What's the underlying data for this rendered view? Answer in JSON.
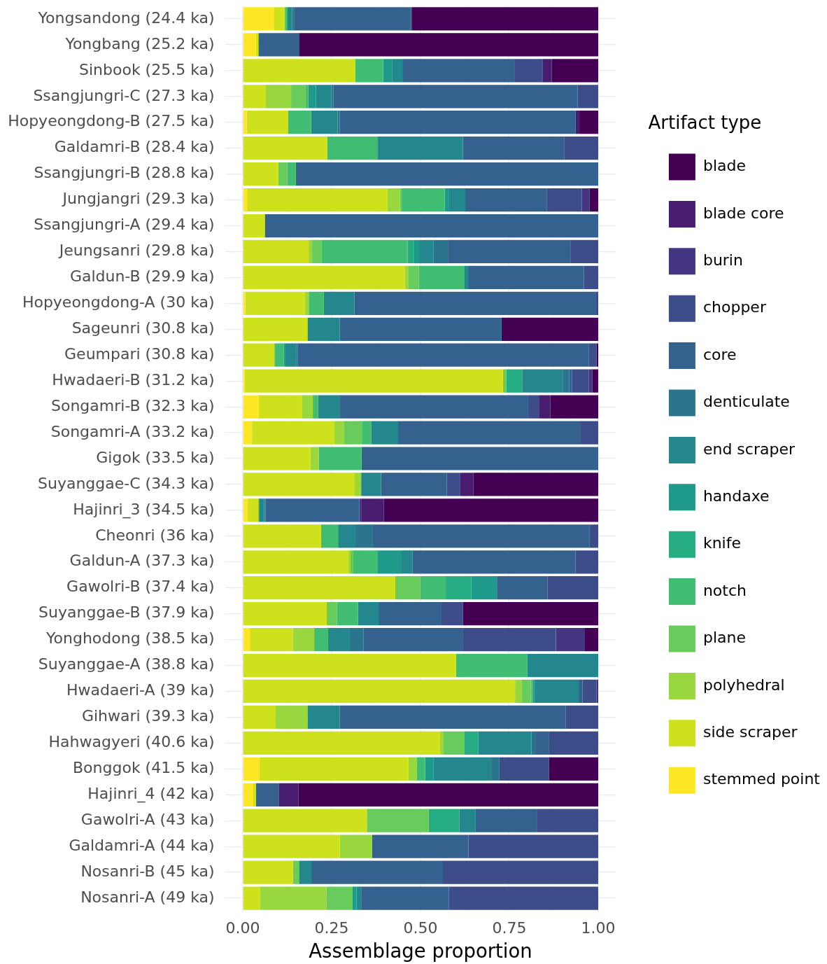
{
  "chart_data": {
    "type": "bar",
    "orientation": "horizontal",
    "stacked": true,
    "xlabel": "Assemblage proportion",
    "legend_title": "Artifact type",
    "legend": "right",
    "grid": true,
    "xlim": [
      -0.05,
      1.05
    ],
    "xticks": [
      {
        "value": 0,
        "label": "0.00"
      },
      {
        "value": 0.125,
        "label": null
      },
      {
        "value": 0.25,
        "label": "0.25"
      },
      {
        "value": 0.375,
        "label": null
      },
      {
        "value": 0.5,
        "label": "0.50"
      },
      {
        "value": 0.625,
        "label": null
      },
      {
        "value": 0.75,
        "label": "0.75"
      },
      {
        "value": 0.875,
        "label": null
      },
      {
        "value": 1,
        "label": "1.00"
      }
    ],
    "categories": [
      "Yongsandong (24.4 ka)",
      "Yongbang (25.2 ka)",
      "Sinbook (25.5 ka)",
      "Ssangjungri-C (27.3 ka)",
      "Hopyeongdong-B (27.5 ka)",
      "Galdamri-B (28.4 ka)",
      "Ssangjungri-B (28.8 ka)",
      "Jungjangri (29.3 ka)",
      "Ssangjungri-A (29.4 ka)",
      "Jeungsanri (29.8 ka)",
      "Galdun-B (29.9 ka)",
      "Hopyeongdong-A (30 ka)",
      "Sageunri (30.8 ka)",
      "Geumpari (30.8 ka)",
      "Hwadaeri-B (31.2 ka)",
      "Songamri-B (32.3 ka)",
      "Songamri-A (33.2 ka)",
      "Gigok (33.5 ka)",
      "Suyanggae-C (34.3 ka)",
      "Hajinri_3 (34.5 ka)",
      "Cheonri (36 ka)",
      "Galdun-A (37.3 ka)",
      "Gawolri-B (37.4 ka)",
      "Suyanggae-B (37.9 ka)",
      "Yonghodong (38.5 ka)",
      "Suyanggae-A (38.8 ka)",
      "Hwadaeri-A (39 ka)",
      "Gihwari (39.3 ka)",
      "Hahwagyeri (40.6 ka)",
      "Bonggok (41.5 ka)",
      "Hajinri_4 (42 ka)",
      "Gawolri-A (43 ka)",
      "Galdamri-A (44 ka)",
      "Nosanri-B (45 ka)",
      "Nosanri-A (49 ka)"
    ],
    "series": [
      {
        "name": "stemmed point",
        "color": "#fde725",
        "values": [
          0.087,
          0.037,
          null,
          null,
          0.011,
          null,
          null,
          0.012,
          null,
          null,
          null,
          0.007,
          null,
          null,
          0.005,
          0.045,
          0.026,
          null,
          null,
          0.014,
          null,
          null,
          null,
          null,
          0.02,
          null,
          null,
          null,
          null,
          0.047,
          0.028,
          null,
          null,
          null,
          null
        ]
      },
      {
        "name": "side scraper",
        "color": "#cde11d",
        "values": [
          0.03,
          0.007,
          0.316,
          0.065,
          0.117,
          0.238,
          0.1,
          0.395,
          0.062,
          0.185,
          0.456,
          0.168,
          0.182,
          0.089,
          0.727,
          0.121,
          0.232,
          0.19,
          0.315,
          0.03,
          0.22,
          0.297,
          0.429,
          0.236,
          0.121,
          0.6,
          0.766,
          0.091,
          0.555,
          0.419,
          0.009,
          0.349,
          0.273,
          0.141,
          0.049
        ]
      },
      {
        "name": "polyhedral",
        "color": "#98d83e",
        "values": [
          null,
          null,
          null,
          0.071,
          null,
          null,
          null,
          0.035,
          null,
          0.01,
          0.009,
          0.012,
          null,
          null,
          null,
          0.031,
          0.026,
          0.024,
          0.018,
          null,
          null,
          0.006,
          null,
          null,
          0.06,
          null,
          0.018,
          0.091,
          0.01,
          0.024,
          null,
          null,
          0.091,
          null,
          0.186
        ]
      },
      {
        "name": "plane",
        "color": "#67cc5c",
        "values": [
          0.003,
          null,
          null,
          0.041,
          null,
          null,
          0.025,
          0.005,
          null,
          0.026,
          0.03,
          null,
          null,
          null,
          0.009,
          null,
          0.051,
          null,
          null,
          null,
          null,
          0.008,
          0.07,
          0.029,
          null,
          null,
          0.026,
          null,
          0.059,
          null,
          null,
          0.174,
          null,
          0.017,
          0.074
        ]
      },
      {
        "name": "notch",
        "color": "#40bd72",
        "values": [
          0.006,
          null,
          0.079,
          0.007,
          0.064,
          0.142,
          0.024,
          0.121,
          null,
          0.243,
          0.129,
          0.041,
          null,
          0.026,
          null,
          0.015,
          0.026,
          0.12,
          null,
          null,
          0.048,
          0.069,
          0.072,
          0.059,
          0.039,
          0.2,
          0.004,
          null,
          null,
          0.023,
          null,
          null,
          null,
          null,
          null
        ]
      },
      {
        "name": "knife",
        "color": "#25ac82",
        "values": [
          null,
          null,
          null,
          null,
          null,
          null,
          null,
          null,
          null,
          0.018,
          null,
          null,
          null,
          null,
          0.045,
          null,
          null,
          null,
          null,
          null,
          null,
          null,
          0.072,
          null,
          null,
          null,
          0.007,
          null,
          0.039,
          null,
          null,
          0.086,
          null,
          null,
          null
        ]
      },
      {
        "name": "handaxe",
        "color": "#1f998a",
        "values": [
          null,
          null,
          0.026,
          0.022,
          null,
          null,
          null,
          0.011,
          null,
          0.014,
          null,
          null,
          null,
          0.005,
          null,
          null,
          null,
          null,
          null,
          0.003,
          null,
          0.065,
          0.072,
          null,
          null,
          null,
          null,
          null,
          null,
          0.023,
          null,
          null,
          null,
          null,
          0.011
        ]
      },
      {
        "name": "end scraper",
        "color": "#24878e",
        "values": [
          0.013,
          null,
          0.028,
          0.043,
          0.075,
          0.239,
          null,
          0.047,
          null,
          0.041,
          0.01,
          0.086,
          0.091,
          0.03,
          0.114,
          0.06,
          0.076,
          null,
          0.056,
          0.013,
          0.049,
          0.032,
          null,
          0.058,
          0.061,
          0.2,
          0.124,
          0.091,
          0.149,
          0.163,
          null,
          0.045,
          null,
          0.035,
          0.013
        ]
      },
      {
        "name": "denticulate",
        "color": "#2b748e",
        "values": [
          0.005,
          null,
          null,
          0.006,
          0.006,
          null,
          null,
          null,
          null,
          0.04,
          null,
          null,
          null,
          0.005,
          0.018,
          null,
          null,
          null,
          null,
          0.004,
          0.049,
          null,
          null,
          null,
          0.039,
          null,
          null,
          null,
          0.011,
          0.022,
          null,
          null,
          null,
          null,
          null
        ]
      },
      {
        "name": "core",
        "color": "#34618d",
        "values": [
          0.328,
          0.114,
          0.315,
          0.687,
          0.663,
          0.285,
          0.851,
          0.23,
          0.938,
          0.346,
          0.326,
          0.68,
          0.455,
          0.819,
          0.008,
          0.531,
          0.512,
          0.666,
          0.185,
          0.264,
          0.61,
          0.459,
          0.142,
          0.177,
          0.28,
          null,
          0.011,
          0.636,
          0.039,
          null,
          0.064,
          0.173,
          0.271,
          0.37,
          0.247
        ]
      },
      {
        "name": "chopper",
        "color": "#3d4d8a",
        "values": [
          0.003,
          null,
          0.079,
          0.058,
          null,
          0.096,
          null,
          0.098,
          null,
          0.077,
          0.04,
          0.006,
          null,
          0.021,
          0.048,
          0.03,
          0.051,
          null,
          0.038,
          null,
          0.024,
          0.064,
          0.143,
          0.06,
          0.261,
          null,
          0.039,
          0.091,
          0.138,
          0.14,
          null,
          0.173,
          0.365,
          0.437,
          0.42
        ]
      },
      {
        "name": "burin",
        "color": "#453581",
        "values": [
          null,
          null,
          null,
          null,
          null,
          null,
          null,
          0.022,
          null,
          null,
          null,
          null,
          null,
          null,
          0.009,
          null,
          null,
          null,
          null,
          0.005,
          null,
          null,
          null,
          null,
          0.08,
          null,
          0.005,
          null,
          null,
          null,
          null,
          null,
          null,
          null,
          null
        ]
      },
      {
        "name": "blade core",
        "color": "#481c6e",
        "values": [
          null,
          null,
          0.026,
          null,
          0.011,
          null,
          null,
          null,
          null,
          null,
          null,
          null,
          null,
          null,
          null,
          0.032,
          null,
          null,
          0.037,
          0.064,
          null,
          null,
          null,
          null,
          null,
          null,
          null,
          null,
          null,
          null,
          0.056,
          null,
          null,
          null,
          null
        ]
      },
      {
        "name": "blade",
        "color": "#440154",
        "values": [
          0.525,
          0.842,
          0.131,
          null,
          0.053,
          null,
          null,
          0.024,
          null,
          null,
          null,
          null,
          0.272,
          0.005,
          0.017,
          0.135,
          null,
          null,
          0.351,
          0.603,
          null,
          null,
          null,
          0.381,
          0.039,
          null,
          null,
          null,
          null,
          0.139,
          0.843,
          null,
          null,
          null,
          null
        ]
      }
    ]
  }
}
